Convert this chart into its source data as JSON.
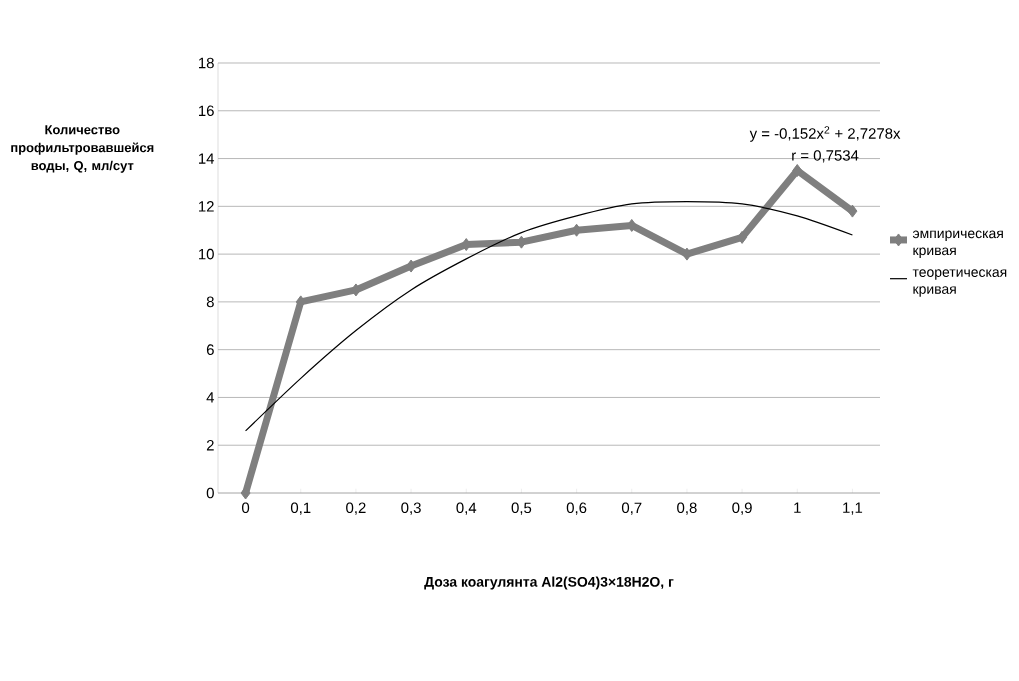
{
  "chart_data": {
    "type": "line",
    "xlabel": "Доза коагулянта Al2(SO4)3×18H2O, г",
    "ylabel": "Количество профильтровавшейся воды, Q, мл/сут",
    "categories": [
      "0",
      "0,1",
      "0,2",
      "0,3",
      "0,4",
      "0,5",
      "0,6",
      "0,7",
      "0,8",
      "0,9",
      "1",
      "1,1"
    ],
    "series": [
      {
        "name": "эмпирическая кривая",
        "color": "#7f7f7f",
        "marker": "diamond",
        "line_style": "solid",
        "values": [
          0,
          8,
          8.5,
          9.5,
          10.4,
          10.5,
          11,
          11.2,
          10,
          10.7,
          13.5,
          11.8
        ]
      },
      {
        "name": "теоретическая кривая",
        "color": "#000000",
        "marker": "none",
        "line_style": "solid",
        "values": [
          2.6,
          4.8,
          6.8,
          8.5,
          9.8,
          10.9,
          11.6,
          12.1,
          12.2,
          12.1,
          11.6,
          10.8
        ]
      }
    ],
    "ylim": [
      0,
      18
    ],
    "yticks": [
      0,
      2,
      4,
      6,
      8,
      10,
      12,
      14,
      16,
      18
    ],
    "grid": "y",
    "legend": "right",
    "annotations": [
      "y = -0,152x$^{2}$ + 2,7278x",
      "r = 0,7534"
    ]
  }
}
